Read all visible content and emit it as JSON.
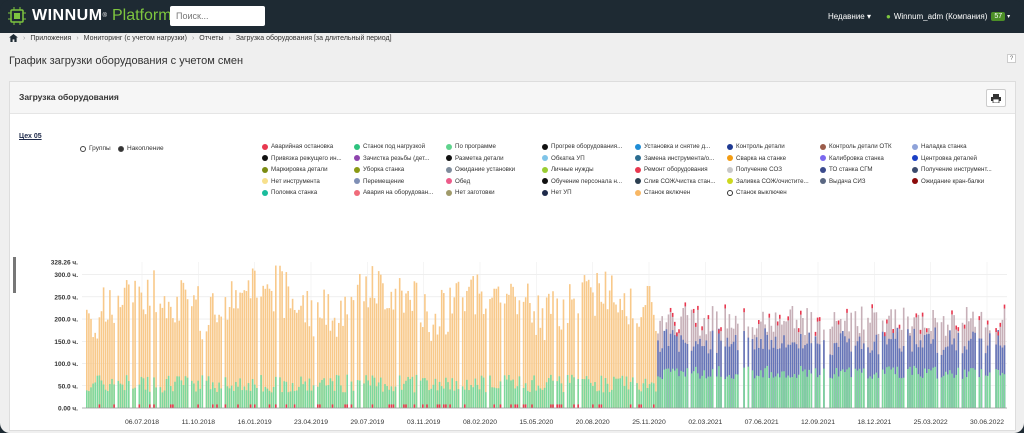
{
  "app": {
    "logo_name": "WINNUM",
    "logo_mark": "®",
    "logo_accent": "Platform",
    "search_placeholder": "Поиск...",
    "recent_label": "Недавние",
    "user_label": "Winnum_adm (Компания)",
    "user_badge": "57"
  },
  "breadcrumb": {
    "items": [
      "Приложения",
      "Мониторинг (с учетом нагрузки)",
      "Отчеты",
      "Загрузка оборудования [за длительный период]"
    ]
  },
  "page": {
    "title": "График загрузки оборудования с учетом смен",
    "help": "?"
  },
  "panel": {
    "title": "Загрузка оборудования",
    "section_link": "Цех 05",
    "mode_groups": "Группы",
    "mode_accum": "Накопление"
  },
  "legend": [
    {
      "label": "Аварийная остановка",
      "color": "#e8384f"
    },
    {
      "label": "Станок под нагрузкой",
      "color": "#2ec27e"
    },
    {
      "label": "По программе",
      "color": "#5fd38d"
    },
    {
      "label": "Прогрев оборудования...",
      "color": "#111111"
    },
    {
      "label": "Установка и снятие д...",
      "color": "#1f8dd6"
    },
    {
      "label": "Контроль детали",
      "color": "#1f3a93"
    },
    {
      "label": "Контроль детали ОТК",
      "color": "#9b5c4a"
    },
    {
      "label": "Наладка станка",
      "color": "#8fa3d9"
    },
    {
      "label": "Привязка режущего ин...",
      "color": "#111111"
    },
    {
      "label": "Зачистка резьбы (дет...",
      "color": "#8e44ad"
    },
    {
      "label": "Разметка детали",
      "color": "#111111"
    },
    {
      "label": "Обкатка УП",
      "color": "#7fc4e8"
    },
    {
      "label": "Замена инструмента/о...",
      "color": "#2b6c8f"
    },
    {
      "label": "Сварка на станке",
      "color": "#f39c12"
    },
    {
      "label": "Калибровка станка",
      "color": "#7b68ee"
    },
    {
      "label": "Центровка деталей",
      "color": "#1a3fc4"
    },
    {
      "label": "Маркировка детали",
      "color": "#7a8b12"
    },
    {
      "label": "Уборка станка",
      "color": "#8a9a14"
    },
    {
      "label": "Ожидание установки",
      "color": "#7f8c9c"
    },
    {
      "label": "Личные нужды",
      "color": "#9acd32"
    },
    {
      "label": "Ремонт оборудования",
      "color": "#e8384f"
    },
    {
      "label": "Получение СОЗ",
      "color": "#c8c8c8"
    },
    {
      "label": "ТО станка СГМ",
      "color": "#3b4a8c"
    },
    {
      "label": "Получение инструмент...",
      "color": "#3b4a6c"
    },
    {
      "label": "Нет инструмента",
      "color": "#f7e08c"
    },
    {
      "label": "Перемещение",
      "color": "#7f8fb5"
    },
    {
      "label": "Обед",
      "color": "#ec5b8a"
    },
    {
      "label": "Обучение персонала н...",
      "color": "#111111"
    },
    {
      "label": "Слив СОЖ/чистка стан...",
      "color": "#2c3e50"
    },
    {
      "label": "Заливка СОЖ/очистите...",
      "color": "#cdd81f"
    },
    {
      "label": "Выдача СИЗ",
      "color": "#5a6782"
    },
    {
      "label": "Ожидание кран-балки",
      "color": "#8b0a0a"
    },
    {
      "label": "Поломка станка",
      "color": "#1abc9c"
    },
    {
      "label": "Авария на оборудован...",
      "color": "#f06b7a"
    },
    {
      "label": "Нет заготовки",
      "color": "#a09a6a"
    },
    {
      "label": "Нет УП",
      "color": "#1e2a4a"
    },
    {
      "label": "Станок включен",
      "color": "#f8b764"
    },
    {
      "label": "Станок выключен",
      "color": "#ffffff",
      "hollow": true
    }
  ],
  "chart_data": {
    "type": "bar",
    "ylim": [
      0,
      328.26
    ],
    "yticks": [
      "0.00 ч.",
      "50.0 ч.",
      "100.0 ч.",
      "150.0 ч.",
      "200.0 ч.",
      "250.0 ч.",
      "300.0 ч."
    ],
    "ymax_label": "328.26 ч.",
    "xticks": [
      "06.07.2018",
      "11.10.2018",
      "16.01.2019",
      "23.04.2019",
      "29.07.2019",
      "03.11.2019",
      "08.02.2020",
      "15.05.2020",
      "20.08.2020",
      "25.11.2020",
      "02.03.2021",
      "07.06.2021",
      "12.09.2021",
      "18.12.2021",
      "25.03.2022",
      "30.06.2022"
    ],
    "phase1_range": [
      0,
      0.62
    ],
    "phase1_total": 240,
    "phase1_green": 55,
    "phase2_total": 195,
    "phase2_green": 80,
    "phase2_blue": 70,
    "phase1_color": "#f8c98a",
    "green_color": "#7dd89c",
    "blue_color": "#6575b8",
    "red_color": "#e8384f"
  }
}
